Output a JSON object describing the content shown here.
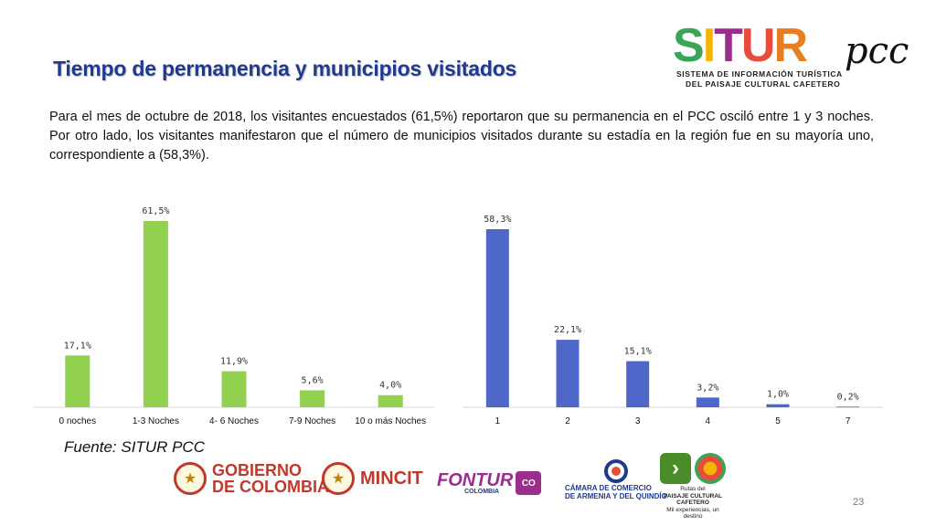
{
  "slide": {
    "title": "Tiempo de permanencia y municipios visitados",
    "paragraph": "Para el mes de octubre de 2018, los visitantes encuestados (61,5%) reportaron que su permanencia en el PCC osciló entre 1 y 3 noches. Por otro lado, los visitantes manifestaron que el número de municipios visitados durante su estadía en la región fue en su mayoría uno, correspondiente a (58,3%).",
    "source": "Fuente: SITUR PCC",
    "page_number": "23"
  },
  "logo": {
    "letters": [
      "S",
      "I",
      "T",
      "U",
      "R"
    ],
    "letter_colors": [
      "#3aa655",
      "#f4b400",
      "#9b2d8c",
      "#e74c3c",
      "#e67e22"
    ],
    "pcc": "pcc",
    "subtitle_line1": "SISTEMA DE INFORMACIÓN TURÍSTICA",
    "subtitle_line2": "DEL PAISAJE CULTURAL CAFETERO"
  },
  "footer": {
    "gobierno_line1": "GOBIERNO",
    "gobierno_line2": "DE COLOMBIA",
    "mincit": "MINCIT",
    "fontur": "FONTUR",
    "fontur_sub": "COLOMBIA",
    "co_badge": "CO",
    "camara_line1": "CÁMARA DE COMERCIO",
    "camara_line2": "DE ARMENIA Y DEL QUINDÍO",
    "rutas_line1": "Rutas del",
    "rutas_line2": "PAISAJE CULTURAL CAFETERO",
    "rutas_line3": "Mil experiencias, un destino"
  },
  "colors": {
    "title": "#1f3a8f",
    "green_bars": "#92d050",
    "blue_bars": "#4f67c9"
  },
  "chart_data": [
    {
      "type": "bar",
      "categories": [
        "0 noches",
        "1-3 Noches",
        "4- 6 Noches",
        "7-9 Noches",
        "10 o más Noches"
      ],
      "values": [
        17.1,
        61.5,
        11.9,
        5.6,
        4.0
      ],
      "labels": [
        "17,1%",
        "61,5%",
        "11,9%",
        "5,6%",
        "4,0%"
      ],
      "color": "#92d050",
      "ylim": [
        0,
        61.5
      ]
    },
    {
      "type": "bar",
      "categories": [
        "1",
        "2",
        "3",
        "4",
        "5",
        "7"
      ],
      "values": [
        58.3,
        22.1,
        15.1,
        3.2,
        1.0,
        0.2
      ],
      "labels": [
        "58,3%",
        "22,1%",
        "15,1%",
        "3,2%",
        "1,0%",
        "0,2%"
      ],
      "color": "#4f67c9",
      "ylim": [
        0,
        58.3
      ]
    }
  ]
}
